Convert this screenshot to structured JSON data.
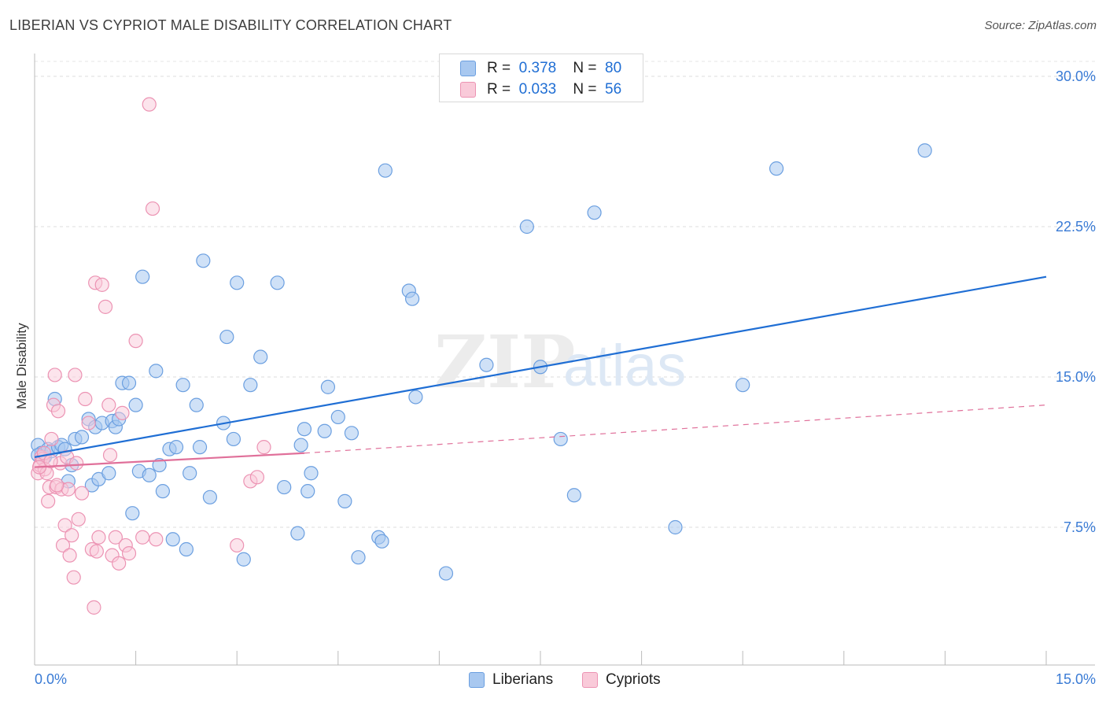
{
  "header": {
    "title": "LIBERIAN VS CYPRIOT MALE DISABILITY CORRELATION CHART",
    "source": "Source: ZipAtlas.com"
  },
  "legend": {
    "rows": [
      {
        "r_label": "R =",
        "r_value": "0.378",
        "n_label": "N =",
        "n_value": "80",
        "color": "#a8c8f0"
      },
      {
        "r_label": "R =",
        "r_value": "0.033",
        "n_label": "N =",
        "n_value": "56",
        "color": "#f5b3c8"
      }
    ]
  },
  "bottom_legend": {
    "liberians": "Liberians",
    "cypriots": "Cypriots"
  },
  "watermark": {
    "zip": "ZIP",
    "atlas": "atlas"
  },
  "chart_data": {
    "type": "scatter",
    "title": "LIBERIAN VS CYPRIOT MALE DISABILITY CORRELATION CHART",
    "xlabel": "",
    "ylabel": "Male Disability",
    "xlim": [
      0,
      15
    ],
    "ylim": [
      0,
      31
    ],
    "x_tick_labels": [
      "0.0%",
      "15.0%"
    ],
    "y_tick_labels": [
      "7.5%",
      "15.0%",
      "22.5%",
      "30.0%"
    ],
    "y_ticks": [
      7.5,
      15.0,
      22.5,
      30.0
    ],
    "grid": true,
    "colors": {
      "liberians": "#1f6ed4",
      "liberians_fill": "#a8c8f0",
      "cypriots": "#e0709a",
      "cypriots_fill": "#f5b3c8",
      "axis_text": "#3a7bd5"
    },
    "series": [
      {
        "name": "Liberians",
        "trend": {
          "x": [
            0.0,
            15.0
          ],
          "y": [
            11.0,
            20.0
          ]
        },
        "points": [
          [
            0.05,
            11.6
          ],
          [
            0.1,
            11.2
          ],
          [
            0.15,
            11.0
          ],
          [
            0.2,
            11.4
          ],
          [
            0.25,
            11.3
          ],
          [
            0.3,
            13.9
          ],
          [
            0.35,
            11.5
          ],
          [
            0.4,
            11.6
          ],
          [
            0.45,
            11.4
          ],
          [
            0.5,
            9.8
          ],
          [
            0.55,
            10.6
          ],
          [
            0.6,
            11.9
          ],
          [
            0.7,
            12.0
          ],
          [
            0.8,
            12.9
          ],
          [
            0.85,
            9.6
          ],
          [
            0.9,
            12.5
          ],
          [
            0.95,
            9.9
          ],
          [
            1.0,
            12.7
          ],
          [
            1.1,
            10.2
          ],
          [
            1.15,
            12.8
          ],
          [
            1.2,
            12.5
          ],
          [
            1.25,
            12.9
          ],
          [
            1.3,
            14.7
          ],
          [
            1.4,
            14.7
          ],
          [
            1.45,
            8.2
          ],
          [
            1.5,
            13.6
          ],
          [
            1.55,
            10.3
          ],
          [
            1.6,
            20.0
          ],
          [
            1.7,
            10.1
          ],
          [
            1.8,
            15.3
          ],
          [
            1.85,
            10.6
          ],
          [
            1.9,
            9.3
          ],
          [
            2.0,
            11.4
          ],
          [
            2.05,
            6.9
          ],
          [
            2.1,
            11.5
          ],
          [
            2.2,
            14.6
          ],
          [
            2.25,
            6.4
          ],
          [
            2.3,
            10.2
          ],
          [
            2.4,
            13.6
          ],
          [
            2.45,
            11.5
          ],
          [
            2.5,
            20.8
          ],
          [
            2.6,
            9.0
          ],
          [
            2.8,
            12.7
          ],
          [
            2.85,
            17.0
          ],
          [
            2.95,
            11.9
          ],
          [
            3.0,
            19.7
          ],
          [
            3.1,
            5.9
          ],
          [
            3.2,
            14.6
          ],
          [
            3.35,
            16.0
          ],
          [
            3.6,
            19.7
          ],
          [
            3.7,
            9.5
          ],
          [
            3.9,
            7.2
          ],
          [
            3.95,
            11.6
          ],
          [
            4.0,
            12.4
          ],
          [
            4.05,
            9.3
          ],
          [
            4.1,
            10.2
          ],
          [
            4.3,
            12.3
          ],
          [
            4.35,
            14.5
          ],
          [
            4.5,
            13.0
          ],
          [
            4.6,
            8.8
          ],
          [
            4.7,
            12.2
          ],
          [
            4.8,
            6.0
          ],
          [
            5.1,
            7.0
          ],
          [
            5.15,
            6.8
          ],
          [
            5.2,
            25.3
          ],
          [
            5.55,
            19.3
          ],
          [
            5.6,
            18.9
          ],
          [
            5.65,
            14.0
          ],
          [
            6.1,
            5.2
          ],
          [
            6.7,
            15.6
          ],
          [
            7.3,
            22.5
          ],
          [
            7.5,
            15.5
          ],
          [
            7.8,
            11.9
          ],
          [
            8.0,
            9.1
          ],
          [
            8.3,
            23.2
          ],
          [
            9.5,
            7.5
          ],
          [
            10.5,
            14.6
          ],
          [
            11.0,
            25.4
          ],
          [
            13.2,
            26.3
          ],
          [
            0.05,
            11.1
          ]
        ]
      },
      {
        "name": "Cypriots",
        "trend": {
          "x": [
            0.0,
            4.0
          ],
          "y": [
            10.5,
            11.2
          ]
        },
        "trend_extended": {
          "x": [
            4.0,
            15.0
          ],
          "y": [
            11.2,
            13.6
          ]
        },
        "points": [
          [
            0.05,
            10.2
          ],
          [
            0.08,
            10.6
          ],
          [
            0.1,
            11.0
          ],
          [
            0.12,
            10.9
          ],
          [
            0.15,
            10.4
          ],
          [
            0.18,
            10.2
          ],
          [
            0.2,
            8.8
          ],
          [
            0.22,
            9.5
          ],
          [
            0.25,
            11.9
          ],
          [
            0.28,
            13.6
          ],
          [
            0.3,
            15.1
          ],
          [
            0.32,
            9.5
          ],
          [
            0.35,
            13.3
          ],
          [
            0.38,
            10.7
          ],
          [
            0.4,
            9.4
          ],
          [
            0.42,
            6.6
          ],
          [
            0.45,
            7.6
          ],
          [
            0.5,
            9.4
          ],
          [
            0.52,
            6.1
          ],
          [
            0.55,
            7.1
          ],
          [
            0.58,
            5.0
          ],
          [
            0.6,
            15.1
          ],
          [
            0.65,
            7.9
          ],
          [
            0.7,
            9.2
          ],
          [
            0.75,
            13.9
          ],
          [
            0.8,
            12.7
          ],
          [
            0.85,
            6.4
          ],
          [
            0.9,
            19.7
          ],
          [
            0.92,
            6.3
          ],
          [
            0.95,
            7.0
          ],
          [
            1.0,
            19.6
          ],
          [
            1.05,
            18.5
          ],
          [
            1.1,
            13.6
          ],
          [
            1.15,
            6.1
          ],
          [
            1.2,
            7.0
          ],
          [
            1.25,
            5.7
          ],
          [
            1.3,
            13.2
          ],
          [
            1.35,
            6.6
          ],
          [
            1.4,
            6.2
          ],
          [
            1.5,
            16.8
          ],
          [
            1.6,
            7.0
          ],
          [
            1.7,
            28.6
          ],
          [
            1.75,
            23.4
          ],
          [
            1.8,
            6.9
          ],
          [
            3.0,
            6.6
          ],
          [
            3.2,
            9.8
          ],
          [
            3.3,
            10.0
          ],
          [
            3.4,
            11.5
          ],
          [
            0.07,
            10.5
          ],
          [
            0.14,
            11.2
          ],
          [
            0.24,
            10.8
          ],
          [
            0.33,
            9.6
          ],
          [
            0.48,
            11.0
          ],
          [
            0.62,
            10.7
          ],
          [
            0.88,
            3.5
          ],
          [
            1.12,
            11.1
          ]
        ]
      }
    ]
  }
}
